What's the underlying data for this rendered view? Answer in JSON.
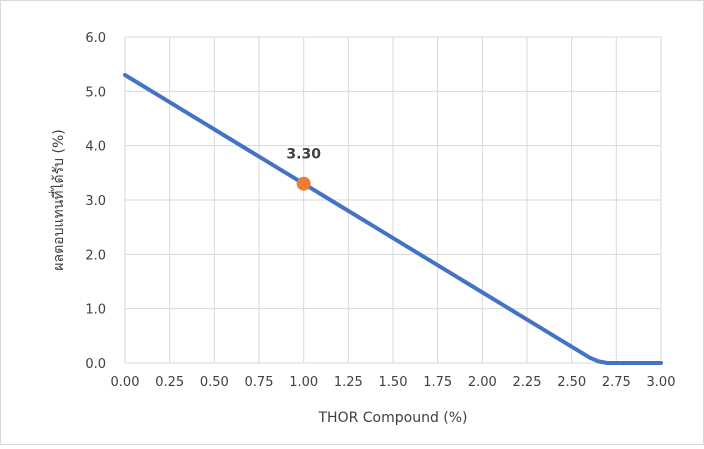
{
  "chart_data": {
    "type": "line",
    "title": "",
    "xlabel": "THOR Compound (%)",
    "ylabel": "ผลตอบแทนที่ได้รับ (%)",
    "xlim": [
      0,
      3
    ],
    "ylim": [
      0,
      6
    ],
    "x_ticks": [
      "0.00",
      "0.25",
      "0.50",
      "0.75",
      "1.00",
      "1.25",
      "1.50",
      "1.75",
      "2.00",
      "2.25",
      "2.50",
      "2.75",
      "3.00"
    ],
    "y_ticks": [
      "0.0",
      "1.0",
      "2.0",
      "3.0",
      "4.0",
      "5.0",
      "6.0"
    ],
    "grid": true,
    "series": [
      {
        "color": "#4472c4",
        "points": [
          [
            0.0,
            5.3
          ],
          [
            0.25,
            4.8
          ],
          [
            0.5,
            4.3
          ],
          [
            0.75,
            3.8
          ],
          [
            1.0,
            3.3
          ],
          [
            1.25,
            2.8
          ],
          [
            1.5,
            2.3
          ],
          [
            1.75,
            1.8
          ],
          [
            2.0,
            1.3
          ],
          [
            2.25,
            0.8
          ],
          [
            2.5,
            0.3
          ],
          [
            2.6,
            0.1
          ],
          [
            2.65,
            0.03
          ],
          [
            2.7,
            0.0
          ],
          [
            2.75,
            0.0
          ],
          [
            3.0,
            0.0
          ]
        ]
      }
    ],
    "highlight": {
      "x": 1.0,
      "y": 3.3,
      "label": "3.30",
      "color": "#ed7d31"
    },
    "grid_color": "#d9d9d9"
  }
}
